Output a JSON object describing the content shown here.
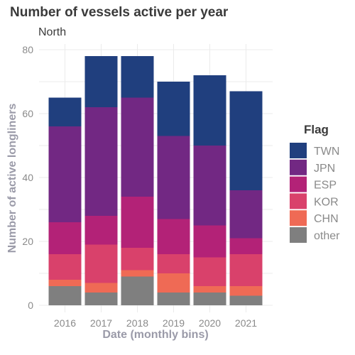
{
  "chart_data": {
    "type": "bar",
    "stacked": true,
    "title": "Number of vessels active per year",
    "subtitle": "North",
    "xlabel": "Date (monthly bins)",
    "ylabel": "Number of active longliners",
    "ylim": [
      0,
      80
    ],
    "yticks": [
      "0",
      "20",
      "40",
      "60",
      "80"
    ],
    "grid": true,
    "legend_title": "Flag",
    "legend_position": "right",
    "categories": [
      "2016",
      "2017",
      "2018",
      "2019",
      "2020",
      "2021"
    ],
    "series": [
      {
        "name": "other",
        "color": "#7f7f7f",
        "values": [
          6,
          4,
          9,
          4,
          4,
          3
        ]
      },
      {
        "name": "CHN",
        "color": "#ef6a55",
        "values": [
          2,
          3,
          2,
          6,
          2,
          3
        ]
      },
      {
        "name": "KOR",
        "color": "#d9416b",
        "values": [
          8,
          12,
          7,
          6,
          9,
          10
        ]
      },
      {
        "name": "ESP",
        "color": "#b32277",
        "values": [
          10,
          9,
          16,
          11,
          10,
          5
        ]
      },
      {
        "name": "JPN",
        "color": "#722883",
        "values": [
          30,
          34,
          31,
          26,
          25,
          15
        ]
      },
      {
        "name": "TWN",
        "color": "#203f7e",
        "values": [
          9,
          16,
          13,
          17,
          22,
          31
        ]
      }
    ],
    "legend_order": [
      "TWN",
      "JPN",
      "ESP",
      "KOR",
      "CHN",
      "other"
    ]
  }
}
